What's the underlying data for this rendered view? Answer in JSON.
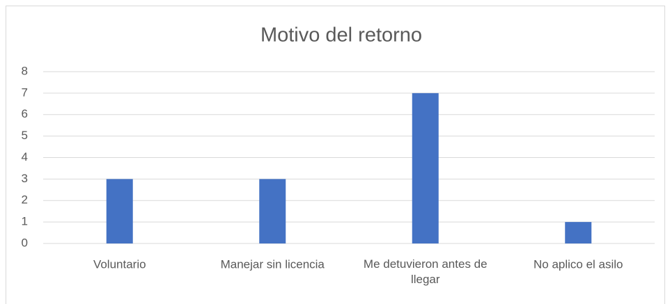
{
  "chart_data": {
    "type": "bar",
    "title": "Motivo del retorno",
    "categories": [
      "Voluntario",
      "Manejar sin licencia",
      "Me detuvieron antes de llegar",
      "No aplico el asilo"
    ],
    "values": [
      3,
      3,
      7,
      1
    ],
    "color": "#4472c4",
    "ylim": [
      0,
      8
    ],
    "yticks": [
      0,
      1,
      2,
      3,
      4,
      5,
      6,
      7,
      8
    ],
    "grid": true
  }
}
